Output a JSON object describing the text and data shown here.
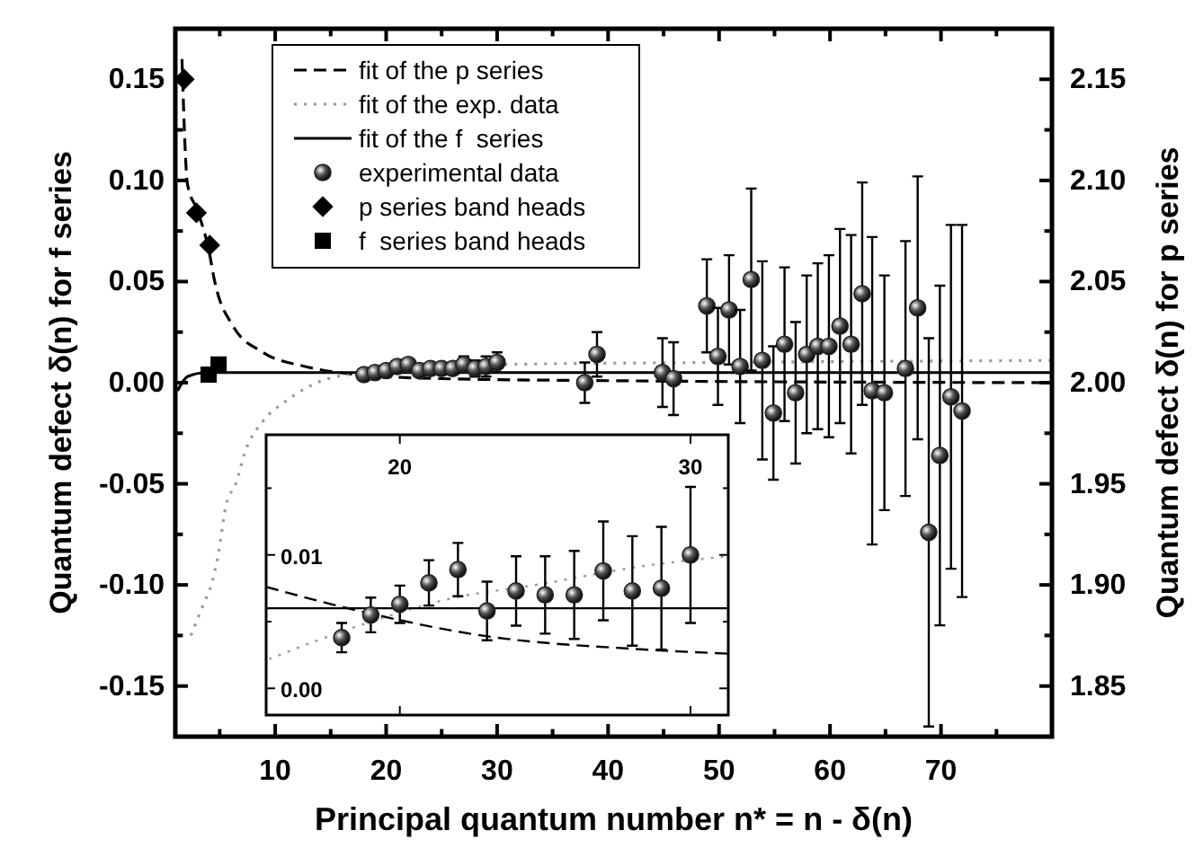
{
  "chart_data": [
    {
      "type": "scatter",
      "xlabel": "Principal quantum number n* = n - δ(n)",
      "ylabel": "Quantum defect δ(n) for f series",
      "y2label": "Quantum defect δ(n) for p series",
      "xlim": [
        1,
        80
      ],
      "xticks": [
        {
          "value": 5,
          "label": null
        },
        10,
        {
          "value": 15,
          "label": null
        },
        20,
        {
          "value": 25,
          "label": null
        },
        30,
        {
          "value": 35,
          "label": null
        },
        40,
        {
          "value": 45,
          "label": null
        },
        50,
        {
          "value": 55,
          "label": null
        },
        60,
        {
          "value": 65,
          "label": null
        },
        70,
        {
          "value": 75,
          "label": null
        }
      ],
      "ylim": [
        -0.175,
        0.175
      ],
      "yticks": [
        {
          "value": -0.15,
          "label": "-0.15"
        },
        {
          "value": -0.125,
          "label": null
        },
        {
          "value": -0.1,
          "label": "-0.10"
        },
        {
          "value": -0.075,
          "label": null
        },
        {
          "value": -0.05,
          "label": "-0.05"
        },
        {
          "value": -0.025,
          "label": null
        },
        {
          "value": 0,
          "label": "0.00"
        },
        {
          "value": 0.025,
          "label": null
        },
        {
          "value": 0.05,
          "label": "0.05"
        },
        {
          "value": 0.075,
          "label": null
        },
        {
          "value": 0.1,
          "label": "0.10"
        },
        {
          "value": 0.125,
          "label": null
        },
        {
          "value": 0.15,
          "label": "0.15"
        }
      ],
      "y2lim": [
        1.825,
        2.175
      ],
      "y2ticks": [
        {
          "value": 1.85,
          "label": "1.85"
        },
        {
          "value": 1.875,
          "label": null
        },
        {
          "value": 1.9,
          "label": "1.90"
        },
        {
          "value": 1.925,
          "label": null
        },
        {
          "value": 1.95,
          "label": "1.95"
        },
        {
          "value": 1.975,
          "label": null
        },
        {
          "value": 2,
          "label": "2.00"
        },
        {
          "value": 2.025,
          "label": null
        },
        {
          "value": 2.05,
          "label": "2.05"
        },
        {
          "value": 2.075,
          "label": null
        },
        {
          "value": 2.1,
          "label": "2.10"
        },
        {
          "value": 2.125,
          "label": null
        },
        {
          "value": 2.15,
          "label": "2.15"
        }
      ],
      "legend": "top left",
      "series": [
        {
          "name": "fit of the p series",
          "type": "line",
          "line_style": "dashed",
          "axis": "y2",
          "color": "#000000",
          "x": [
            1.6,
            2.1,
            3,
            4,
            4.55,
            6.2,
            8.9,
            12.7,
            17.5,
            25,
            40,
            80
          ],
          "values": [
            2.16,
            2.098,
            2.085,
            2.066,
            2.05,
            2.028,
            2.015,
            2.008,
            2.004,
            2.002,
            2.001,
            2
          ]
        },
        {
          "name": "fit of the exp. data",
          "type": "line",
          "line_style": "dotted",
          "color": "#999999",
          "x": [
            2.4,
            3.5,
            4.3,
            4.8,
            5.6,
            6.45,
            7.3,
            8.9,
            11,
            14.8,
            20,
            30.5,
            50,
            80
          ],
          "values": [
            -0.125,
            -0.11,
            -0.099,
            -0.087,
            -0.06,
            -0.05,
            -0.034,
            -0.019,
            -0.009,
            0.002,
            0.006,
            0.009,
            0.01,
            0.011
          ]
        },
        {
          "name": "fit of the f  series",
          "type": "line",
          "line_style": "solid",
          "color": "#000000",
          "x": [
            1.2,
            2.1,
            3.8,
            80
          ],
          "values": [
            -0.004,
            0.003,
            0.005,
            0.005
          ]
        },
        {
          "name": "experimental data",
          "type": "scatter",
          "marker": "circle",
          "color": "#222222",
          "x": [
            18,
            19,
            20,
            21,
            22,
            23,
            24,
            25,
            26,
            27,
            28,
            29,
            30,
            37.9,
            39,
            44.9,
            45.9,
            48.9,
            49.9,
            50.9,
            51.9,
            52.9,
            53.9,
            54.9,
            55.9,
            56.9,
            57.9,
            58.9,
            59.9,
            60.9,
            61.9,
            62.9,
            63.8,
            64.9,
            66.8,
            67.9,
            68.9,
            69.9,
            70.9,
            71.9
          ],
          "values": [
            0.004,
            0.005,
            0.006,
            0.008,
            0.009,
            0.006,
            0.007,
            0.007,
            0.007,
            0.009,
            0.007,
            0.008,
            0.01,
            0,
            0.014,
            0.005,
            0.002,
            0.038,
            0.013,
            0.036,
            0.008,
            0.051,
            0.011,
            -0.015,
            0.019,
            -0.005,
            0.014,
            0.018,
            0.018,
            0.028,
            0.019,
            0.044,
            -0.004,
            -0.005,
            0.007,
            0.037,
            -0.074,
            -0.036,
            -0.007,
            -0.014
          ],
          "errors": [
            null,
            null,
            null,
            null,
            null,
            null,
            null,
            null,
            null,
            0.004,
            0.004,
            0.005,
            0.005,
            0.01,
            0.011,
            0.017,
            0.018,
            0.023,
            0.024,
            0.027,
            0.028,
            0.045,
            0.049,
            0.033,
            0.038,
            0.035,
            0.039,
            0.041,
            0.045,
            0.048,
            0.054,
            0.055,
            0.076,
            0.058,
            0.063,
            0.065,
            0.096,
            0.084,
            0.085,
            0.092
          ]
        },
        {
          "name": "p series band heads",
          "type": "scatter",
          "marker": "diamond",
          "axis": "y2",
          "color": "#000000",
          "x": [
            1.8,
            2.9,
            4.1
          ],
          "values": [
            2.15,
            2.084,
            2.068
          ]
        },
        {
          "name": "f  series band heads",
          "type": "scatter",
          "marker": "square",
          "color": "#000000",
          "x": [
            4,
            4.9
          ],
          "values": [
            0.004,
            0.009
          ]
        }
      ]
    },
    {
      "type": "scatter",
      "xlim": [
        15.4,
        31.3
      ],
      "xticks": [
        20,
        30
      ],
      "ylim": [
        -0.002,
        0.019
      ],
      "yticks": [
        {
          "value": 0,
          "label": "0.00"
        },
        {
          "value": 0.005,
          "label": null
        },
        {
          "value": 0.01,
          "label": "0.01"
        },
        {
          "value": 0.015,
          "label": null
        }
      ],
      "series": [
        {
          "type": "line",
          "line_style": "dashed",
          "color": "#000000",
          "x": [
            15.4,
            18.6,
            22.7,
            28.5,
            31.3
          ],
          "values": [
            0.0076,
            0.0058,
            0.004,
            0.0029,
            0.0026
          ]
        },
        {
          "type": "line",
          "line_style": "dotted",
          "color": "#999999",
          "x": [
            15.5,
            18.6,
            21.7,
            24.8,
            28.5,
            31.3
          ],
          "values": [
            0.0022,
            0.0047,
            0.0067,
            0.0078,
            0.0092,
            0.0099
          ]
        },
        {
          "type": "line",
          "line_style": "solid",
          "color": "#000000",
          "x": [
            15.4,
            31.3
          ],
          "values": [
            0.006,
            0.006
          ]
        },
        {
          "type": "scatter",
          "marker": "circle",
          "color": "#222222",
          "x": [
            18,
            19,
            20,
            21,
            22,
            23,
            24,
            25,
            26,
            27,
            28,
            29,
            30
          ],
          "values": [
            0.0038,
            0.0055,
            0.0063,
            0.0079,
            0.0089,
            0.0058,
            0.0073,
            0.007,
            0.007,
            0.0088,
            0.0073,
            0.0075,
            0.01
          ],
          "errors": [
            0.0011,
            0.0013,
            0.0014,
            0.0017,
            0.002,
            0.0022,
            0.0026,
            0.0029,
            0.0033,
            0.0037,
            0.0041,
            0.0046,
            0.0051
          ]
        }
      ]
    }
  ]
}
